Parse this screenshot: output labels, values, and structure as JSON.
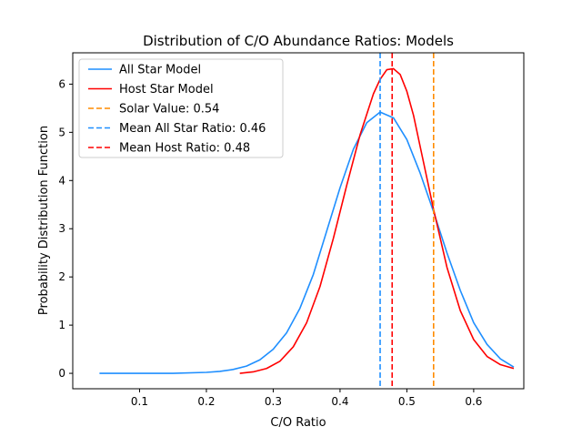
{
  "chart_data": {
    "type": "line",
    "title": "Distribution of C/O Abundance Ratios: Models",
    "xlabel": "C/O Ratio",
    "ylabel": "Probability Distribution Function",
    "xlim": [
      0.0,
      0.675
    ],
    "ylim": [
      -0.32,
      6.65
    ],
    "x_ticks": [
      "0.1",
      "0.2",
      "0.3",
      "0.4",
      "0.5",
      "0.6"
    ],
    "y_ticks": [
      "0",
      "1",
      "2",
      "3",
      "4",
      "5",
      "6"
    ],
    "grid": false,
    "legend_position": "top-left",
    "series": [
      {
        "name": "All Star Model",
        "style": "solid",
        "color": "#1f8fff",
        "x": [
          0.04,
          0.1,
          0.15,
          0.2,
          0.22,
          0.24,
          0.26,
          0.28,
          0.3,
          0.32,
          0.34,
          0.36,
          0.38,
          0.4,
          0.42,
          0.44,
          0.46,
          0.48,
          0.5,
          0.52,
          0.54,
          0.56,
          0.58,
          0.6,
          0.62,
          0.64,
          0.66
        ],
        "y": [
          0.0,
          0.0,
          0.0,
          0.02,
          0.04,
          0.08,
          0.15,
          0.28,
          0.5,
          0.84,
          1.35,
          2.05,
          2.95,
          3.85,
          4.65,
          5.2,
          5.42,
          5.3,
          4.85,
          4.15,
          3.35,
          2.5,
          1.72,
          1.05,
          0.6,
          0.3,
          0.13
        ]
      },
      {
        "name": "Host Star Model",
        "style": "solid",
        "color": "#ff0000",
        "x": [
          0.25,
          0.27,
          0.29,
          0.31,
          0.33,
          0.35,
          0.37,
          0.39,
          0.41,
          0.43,
          0.45,
          0.46,
          0.47,
          0.48,
          0.49,
          0.5,
          0.51,
          0.52,
          0.54,
          0.56,
          0.58,
          0.6,
          0.62,
          0.64,
          0.66
        ],
        "y": [
          0.0,
          0.03,
          0.1,
          0.25,
          0.55,
          1.05,
          1.8,
          2.8,
          3.9,
          4.95,
          5.8,
          6.1,
          6.3,
          6.32,
          6.2,
          5.85,
          5.35,
          4.7,
          3.4,
          2.2,
          1.3,
          0.7,
          0.35,
          0.18,
          0.1
        ]
      }
    ],
    "vlines": [
      {
        "name": "Solar Value: 0.54",
        "x": 0.54,
        "style": "dashed",
        "color": "#ff8c00"
      },
      {
        "name": "Mean All Star Ratio: 0.46",
        "x": 0.46,
        "style": "dashed",
        "color": "#1f8fff"
      },
      {
        "name": "Mean Host Ratio: 0.48",
        "x": 0.478,
        "style": "dashed",
        "color": "#ff0000"
      }
    ],
    "legend": [
      {
        "label": "All Star Model",
        "style": "solid",
        "color": "#1f8fff"
      },
      {
        "label": "Host Star Model",
        "style": "solid",
        "color": "#ff0000"
      },
      {
        "label": "Solar Value: 0.54",
        "style": "dashed",
        "color": "#ff8c00"
      },
      {
        "label": "Mean All Star Ratio: 0.46",
        "style": "dashed",
        "color": "#1f8fff"
      },
      {
        "label": "Mean Host Ratio: 0.48",
        "style": "dashed",
        "color": "#ff0000"
      }
    ]
  }
}
